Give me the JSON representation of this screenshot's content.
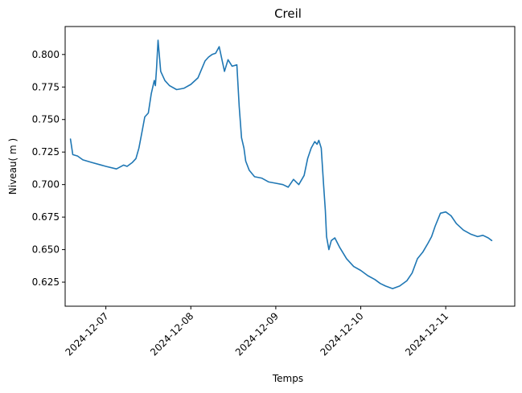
{
  "chart_data": {
    "type": "line",
    "title": "Creil",
    "xlabel": "Temps",
    "ylabel": "Niveau( m )",
    "x_ticks": [
      "2024-12-07",
      "2024-12-08",
      "2024-12-09",
      "2024-12-10",
      "2024-12-11"
    ],
    "y_ticks": [
      "0.625",
      "0.650",
      "0.675",
      "0.700",
      "0.725",
      "0.750",
      "0.775",
      "0.800"
    ],
    "xlim": [
      "2024-12-06 12:30",
      "2024-12-11 19:30"
    ],
    "ylim": [
      0.6065,
      0.8215
    ],
    "grid": false,
    "legend": "none",
    "color": "#1f77b4",
    "series": [
      {
        "x": [
          "2024-12-06 14:00",
          "2024-12-06 14:40",
          "2024-12-06 16:00",
          "2024-12-06 17:30",
          "2024-12-06 20:00",
          "2024-12-07 00:00",
          "2024-12-07 03:00",
          "2024-12-07 05:00",
          "2024-12-07 06:00",
          "2024-12-07 07:30",
          "2024-12-07 08:30",
          "2024-12-07 09:20",
          "2024-12-07 10:10",
          "2024-12-07 11:00",
          "2024-12-07 12:00",
          "2024-12-07 12:50",
          "2024-12-07 13:40",
          "2024-12-07 14:00",
          "2024-12-07 14:20",
          "2024-12-07 14:45",
          "2024-12-07 15:30",
          "2024-12-07 16:40",
          "2024-12-07 18:00",
          "2024-12-07 20:00",
          "2024-12-07 22:00",
          "2024-12-08 00:00",
          "2024-12-08 02:00",
          "2024-12-08 04:00",
          "2024-12-08 05:00",
          "2024-12-08 06:00",
          "2024-12-08 07:00",
          "2024-12-08 08:00",
          "2024-12-08 09:30",
          "2024-12-08 10:30",
          "2024-12-08 11:40",
          "2024-12-08 13:00",
          "2024-12-08 13:40",
          "2024-12-08 14:20",
          "2024-12-08 15:00",
          "2024-12-08 15:30",
          "2024-12-08 16:30",
          "2024-12-08 18:00",
          "2024-12-08 20:00",
          "2024-12-08 22:00",
          "2024-12-09 00:00",
          "2024-12-09 02:00",
          "2024-12-09 03:30",
          "2024-12-09 05:00",
          "2024-12-09 06:30",
          "2024-12-09 08:00",
          "2024-12-09 09:00",
          "2024-12-09 10:00",
          "2024-12-09 11:00",
          "2024-12-09 11:40",
          "2024-12-09 12:10",
          "2024-12-09 12:50",
          "2024-12-09 13:30",
          "2024-12-09 14:00",
          "2024-12-09 14:20",
          "2024-12-09 15:00",
          "2024-12-09 15:40",
          "2024-12-09 16:40",
          "2024-12-09 18:00",
          "2024-12-09 20:00",
          "2024-12-09 22:00",
          "2024-12-10 00:00",
          "2024-12-10 02:00",
          "2024-12-10 04:00",
          "2024-12-10 05:30",
          "2024-12-10 07:00",
          "2024-12-10 09:00",
          "2024-12-10 11:00",
          "2024-12-10 13:00",
          "2024-12-10 14:30",
          "2024-12-10 16:00",
          "2024-12-10 17:30",
          "2024-12-10 19:00",
          "2024-12-10 20:00",
          "2024-12-10 21:00",
          "2024-12-10 22:30",
          "2024-12-11 00:00",
          "2024-12-11 01:30",
          "2024-12-11 03:00",
          "2024-12-11 05:00",
          "2024-12-11 07:00",
          "2024-12-11 09:00",
          "2024-12-11 10:30",
          "2024-12-11 12:00",
          "2024-12-11 13:00"
        ],
        "y": [
          0.735,
          0.723,
          0.722,
          0.719,
          0.717,
          0.714,
          0.712,
          0.715,
          0.714,
          0.717,
          0.72,
          0.728,
          0.74,
          0.752,
          0.755,
          0.77,
          0.78,
          0.776,
          0.79,
          0.811,
          0.787,
          0.78,
          0.776,
          0.773,
          0.774,
          0.777,
          0.782,
          0.795,
          0.798,
          0.8,
          0.801,
          0.806,
          0.787,
          0.796,
          0.791,
          0.792,
          0.76,
          0.736,
          0.728,
          0.718,
          0.711,
          0.706,
          0.705,
          0.702,
          0.701,
          0.7,
          0.698,
          0.704,
          0.7,
          0.707,
          0.72,
          0.728,
          0.733,
          0.731,
          0.734,
          0.728,
          0.7,
          0.68,
          0.66,
          0.65,
          0.657,
          0.659,
          0.652,
          0.643,
          0.637,
          0.634,
          0.63,
          0.627,
          0.624,
          0.622,
          0.62,
          0.622,
          0.626,
          0.632,
          0.643,
          0.648,
          0.655,
          0.66,
          0.668,
          0.678,
          0.679,
          0.676,
          0.67,
          0.665,
          0.662,
          0.66,
          0.661,
          0.659,
          0.657
        ]
      }
    ]
  }
}
